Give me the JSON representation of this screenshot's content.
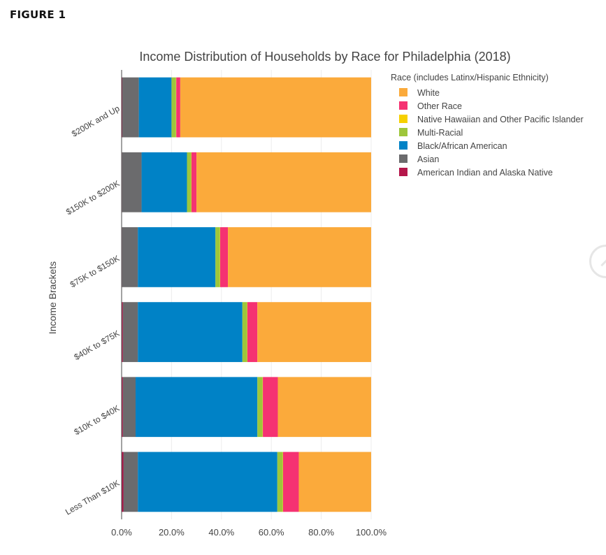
{
  "figure_label": "FIGURE 1",
  "chart_data": {
    "type": "bar",
    "orientation": "horizontal",
    "stacked": true,
    "title": "Income Distribution of Households by Race for Philadelphia (2018)",
    "ylabel": "Income Brackets",
    "xlabel": "",
    "xlim": [
      0,
      100
    ],
    "xticks": [
      "0.0%",
      "20.0%",
      "40.0%",
      "60.0%",
      "80.0%",
      "100.0%"
    ],
    "grid": true,
    "legend_placement": "right",
    "legend_title": "Race (includes Latinx/Hispanic Ethnicity)",
    "categories": [
      "$200K and Up",
      "$150K to $200K",
      "$75K to $150K",
      "$40K to $75K",
      "$10K to $40K",
      "Less Than $10K"
    ],
    "series": [
      {
        "name": "American Indian and Alaska Native",
        "color": "#b5174b",
        "values": [
          0.3,
          0.2,
          0.2,
          0.5,
          0.5,
          0.7
        ]
      },
      {
        "name": "Asian",
        "color": "#6b6b6d",
        "values": [
          6.6,
          7.8,
          6.3,
          6.0,
          5.1,
          5.8
        ]
      },
      {
        "name": "Black/African American",
        "color": "#0082c6",
        "values": [
          13.1,
          18.2,
          31.1,
          41.9,
          48.8,
          55.9
        ]
      },
      {
        "name": "Multi-Racial",
        "color": "#9ec63b",
        "values": [
          1.8,
          1.7,
          1.8,
          1.9,
          2.1,
          2.2
        ]
      },
      {
        "name": "Native Hawaiian and Other Pacific Islander",
        "color": "#f6d000",
        "values": [
          0.1,
          0.1,
          0.1,
          0.1,
          0.1,
          0.1
        ]
      },
      {
        "name": "Other Race",
        "color": "#f53272",
        "values": [
          1.6,
          2.0,
          3.1,
          4.0,
          6.0,
          6.3
        ]
      },
      {
        "name": "White",
        "color": "#fbaa3b",
        "values": [
          76.5,
          70.0,
          57.4,
          45.6,
          37.4,
          29.0
        ]
      }
    ],
    "legend_order": [
      "White",
      "Other Race",
      "Native Hawaiian and Other Pacific Islander",
      "Multi-Racial",
      "Black/African American",
      "Asian",
      "American Indian and Alaska Native"
    ]
  }
}
